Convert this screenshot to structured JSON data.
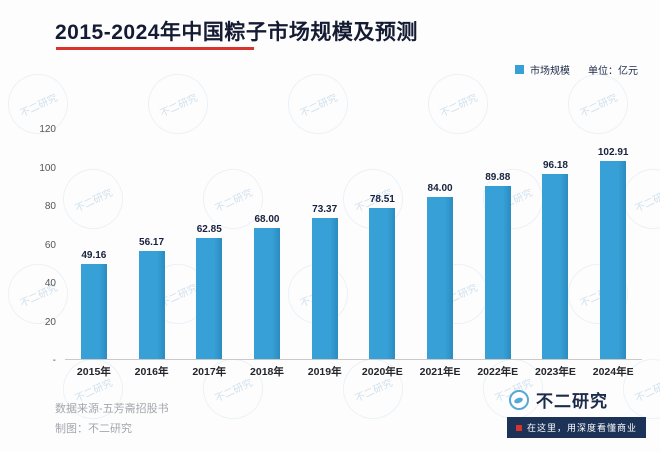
{
  "title": "2015-2024年中国粽子市场规模及预测",
  "legend": {
    "label": "市场规模",
    "unit": "单位：亿元"
  },
  "colors": {
    "bar": "#37A0D6",
    "bar_edge": "#2b8cc0",
    "accent_red": "#D9342B",
    "navy": "#1C2B4A"
  },
  "chart_data": {
    "type": "bar",
    "title": "2015-2024年中国粽子市场规模及预测",
    "categories": [
      "2015年",
      "2016年",
      "2017年",
      "2018年",
      "2019年",
      "2020年E",
      "2021年E",
      "2022年E",
      "2023年E",
      "2024年E"
    ],
    "values": [
      49.16,
      56.17,
      62.85,
      68.0,
      73.37,
      78.51,
      84.0,
      89.88,
      96.18,
      102.91
    ],
    "ylabel": "亿元",
    "xlabel": "",
    "ylim": [
      0,
      120
    ],
    "grid": false,
    "legend_position": "top-right",
    "yticks": [
      {
        "v": 120,
        "label": "120"
      },
      {
        "v": 100,
        "label": "100"
      },
      {
        "v": 80,
        "label": "80"
      },
      {
        "v": 60,
        "label": "60"
      },
      {
        "v": 40,
        "label": "40"
      },
      {
        "v": 20,
        "label": "20"
      },
      {
        "v": 0,
        "label": "-"
      }
    ]
  },
  "footer": {
    "source": "数据来源-五芳斋招股书",
    "credit": "制图：不二研究"
  },
  "brand": {
    "name": "不二研究",
    "tagline": "在这里，用深度看懂商业"
  },
  "watermark": "不二研究"
}
